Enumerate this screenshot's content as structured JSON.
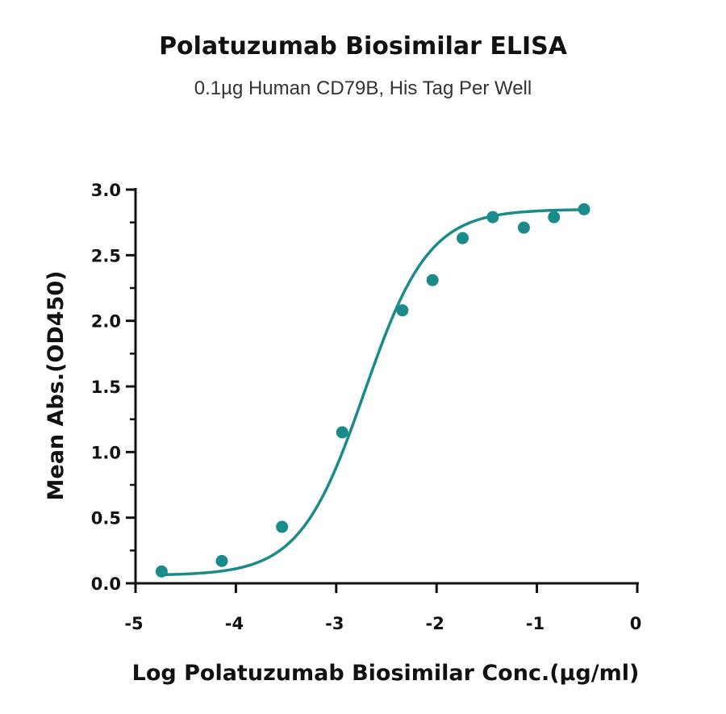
{
  "chart_data": {
    "type": "scatter",
    "title": "Polatuzumab Biosimilar ELISA",
    "subtitle": "0.1µg Human CD79B, His Tag Per Well",
    "xlabel": "Log Polatuzumab Biosimilar Conc.(µg/ml)",
    "ylabel": "Mean Abs.(OD450)",
    "xlim": [
      -5,
      0
    ],
    "ylim": [
      0,
      3.0
    ],
    "x_ticks": [
      -5,
      -4,
      -3,
      -2,
      -1,
      0
    ],
    "x_tick_labels": [
      "-5",
      "-4",
      "-3",
      "-2",
      "-1",
      "0"
    ],
    "y_ticks": [
      0,
      0.5,
      1.0,
      1.5,
      2.0,
      2.5,
      3.0
    ],
    "y_tick_labels": [
      "0.0",
      "0.5",
      "1.0",
      "1.5",
      "2.0",
      "2.5",
      "3.0"
    ],
    "grid": false,
    "series": [
      {
        "color": "#1a8a8a",
        "points": [
          {
            "x": -4.74,
            "y": 0.09
          },
          {
            "x": -4.14,
            "y": 0.17
          },
          {
            "x": -3.54,
            "y": 0.43
          },
          {
            "x": -2.94,
            "y": 1.15
          },
          {
            "x": -2.34,
            "y": 2.08
          },
          {
            "x": -2.04,
            "y": 2.31
          },
          {
            "x": -1.74,
            "y": 2.63
          },
          {
            "x": -1.44,
            "y": 2.79
          },
          {
            "x": -1.13,
            "y": 2.71
          },
          {
            "x": -0.83,
            "y": 2.79
          },
          {
            "x": -0.53,
            "y": 2.85
          }
        ],
        "fit": {
          "model": "4PL",
          "bottom": 0.06,
          "top": 2.85,
          "log_ec50": -2.72,
          "hill": 1.35
        }
      }
    ]
  }
}
